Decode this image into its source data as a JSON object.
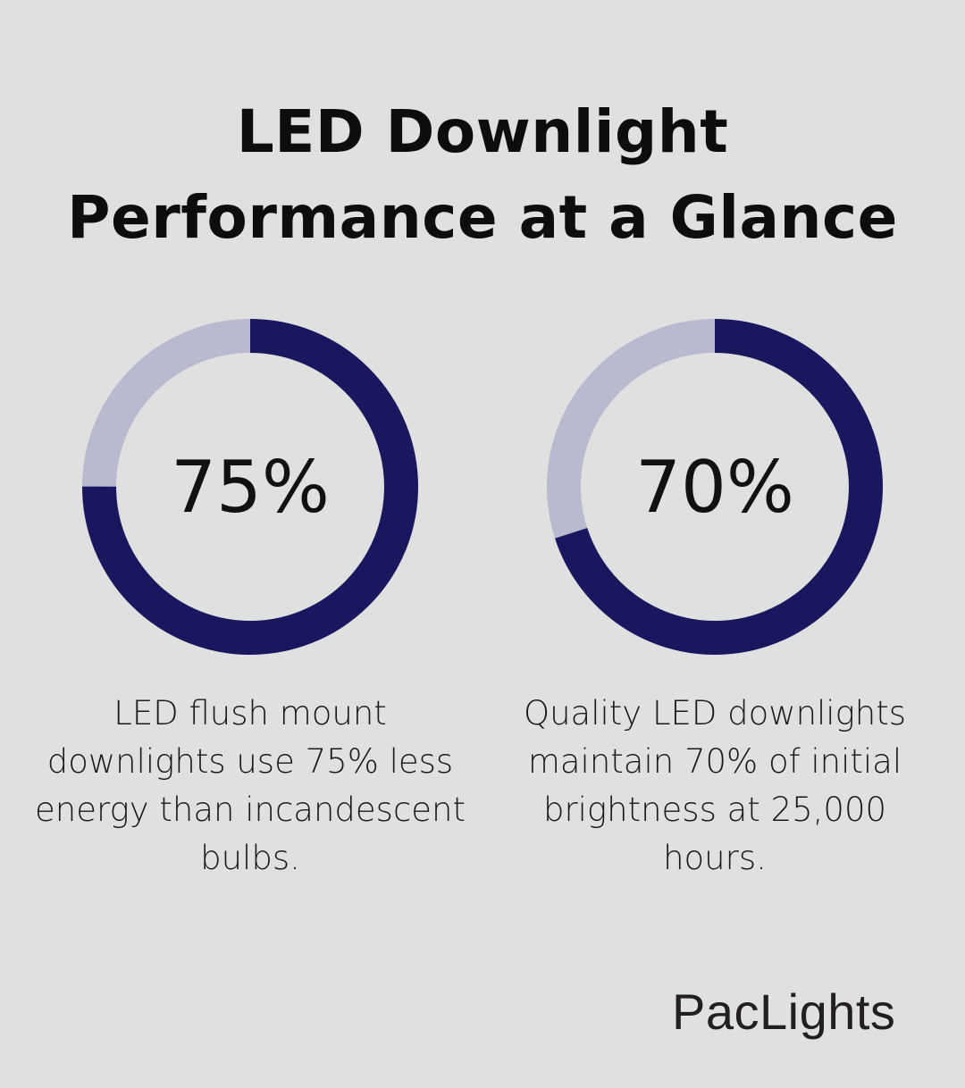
{
  "title": {
    "line1": "LED Downlight",
    "line2": "Performance at a Glance"
  },
  "colors": {
    "filled": "#19175e",
    "remainder": "#b9bacf",
    "background": "#dfe1e0"
  },
  "chart_data": [
    {
      "type": "pie",
      "variant": "donut",
      "value": 75,
      "label": "75%",
      "description": "LED flush mount downlights use 75% less energy than incandescent bulbs."
    },
    {
      "type": "pie",
      "variant": "donut",
      "value": 70,
      "label": "70%",
      "description": "Quality LED downlights maintain 70% of initial brightness at 25,000 hours."
    }
  ],
  "logo": {
    "text": "PacLights"
  }
}
